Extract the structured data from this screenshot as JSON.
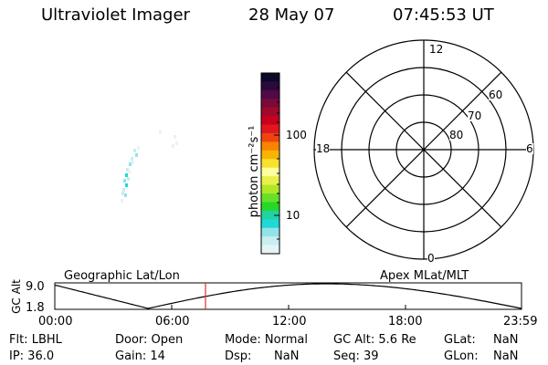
{
  "header": {
    "instrument": "Ultraviolet Imager",
    "date": "28 May 07",
    "time": "07:45:53 UT"
  },
  "colorbar": {
    "label": "photon cm⁻²s⁻¹",
    "ticks": [
      "100",
      "10"
    ],
    "colors": [
      "#0a0a28",
      "#2a0a3c",
      "#500a46",
      "#7a0a3a",
      "#a00a2a",
      "#c8001e",
      "#e0181e",
      "#f04410",
      "#f88400",
      "#f8b400",
      "#f8e030",
      "#ffffa0",
      "#e8f04c",
      "#b0e828",
      "#68e028",
      "#28d828",
      "#20d4a0",
      "#20d8d8",
      "#90e4e8",
      "#c8eef0",
      "#e6f4f6"
    ]
  },
  "polar": {
    "mlt_labels": {
      "top": "12",
      "left": "18",
      "right": "6",
      "bottom": "0"
    },
    "lat_labels": [
      "60",
      "70",
      "80"
    ]
  },
  "timeline": {
    "left_title": "Geographic Lat/Lon",
    "right_title": "Apex MLat/MLT",
    "axis_label": "GC Alt",
    "y_ticks": [
      "9.0",
      "1.8"
    ],
    "x_ticks": [
      "00:00",
      "06:00",
      "12:00",
      "18:00",
      "23:59"
    ],
    "marker_color": "#e03030"
  },
  "info": {
    "flt": "Flt: LBHL",
    "ip": "IP: 36.0",
    "door": "Door: Open",
    "gain": "Gain: 14",
    "mode": "Mode: Normal",
    "dsp_label": "Dsp:",
    "dsp_value": "NaN",
    "gcalt": "GC Alt: 5.6 Re",
    "seq": "Seq: 39",
    "glat_label": "GLat:",
    "glat_value": "NaN",
    "glon_label": "GLon:",
    "glon_value": "NaN"
  }
}
